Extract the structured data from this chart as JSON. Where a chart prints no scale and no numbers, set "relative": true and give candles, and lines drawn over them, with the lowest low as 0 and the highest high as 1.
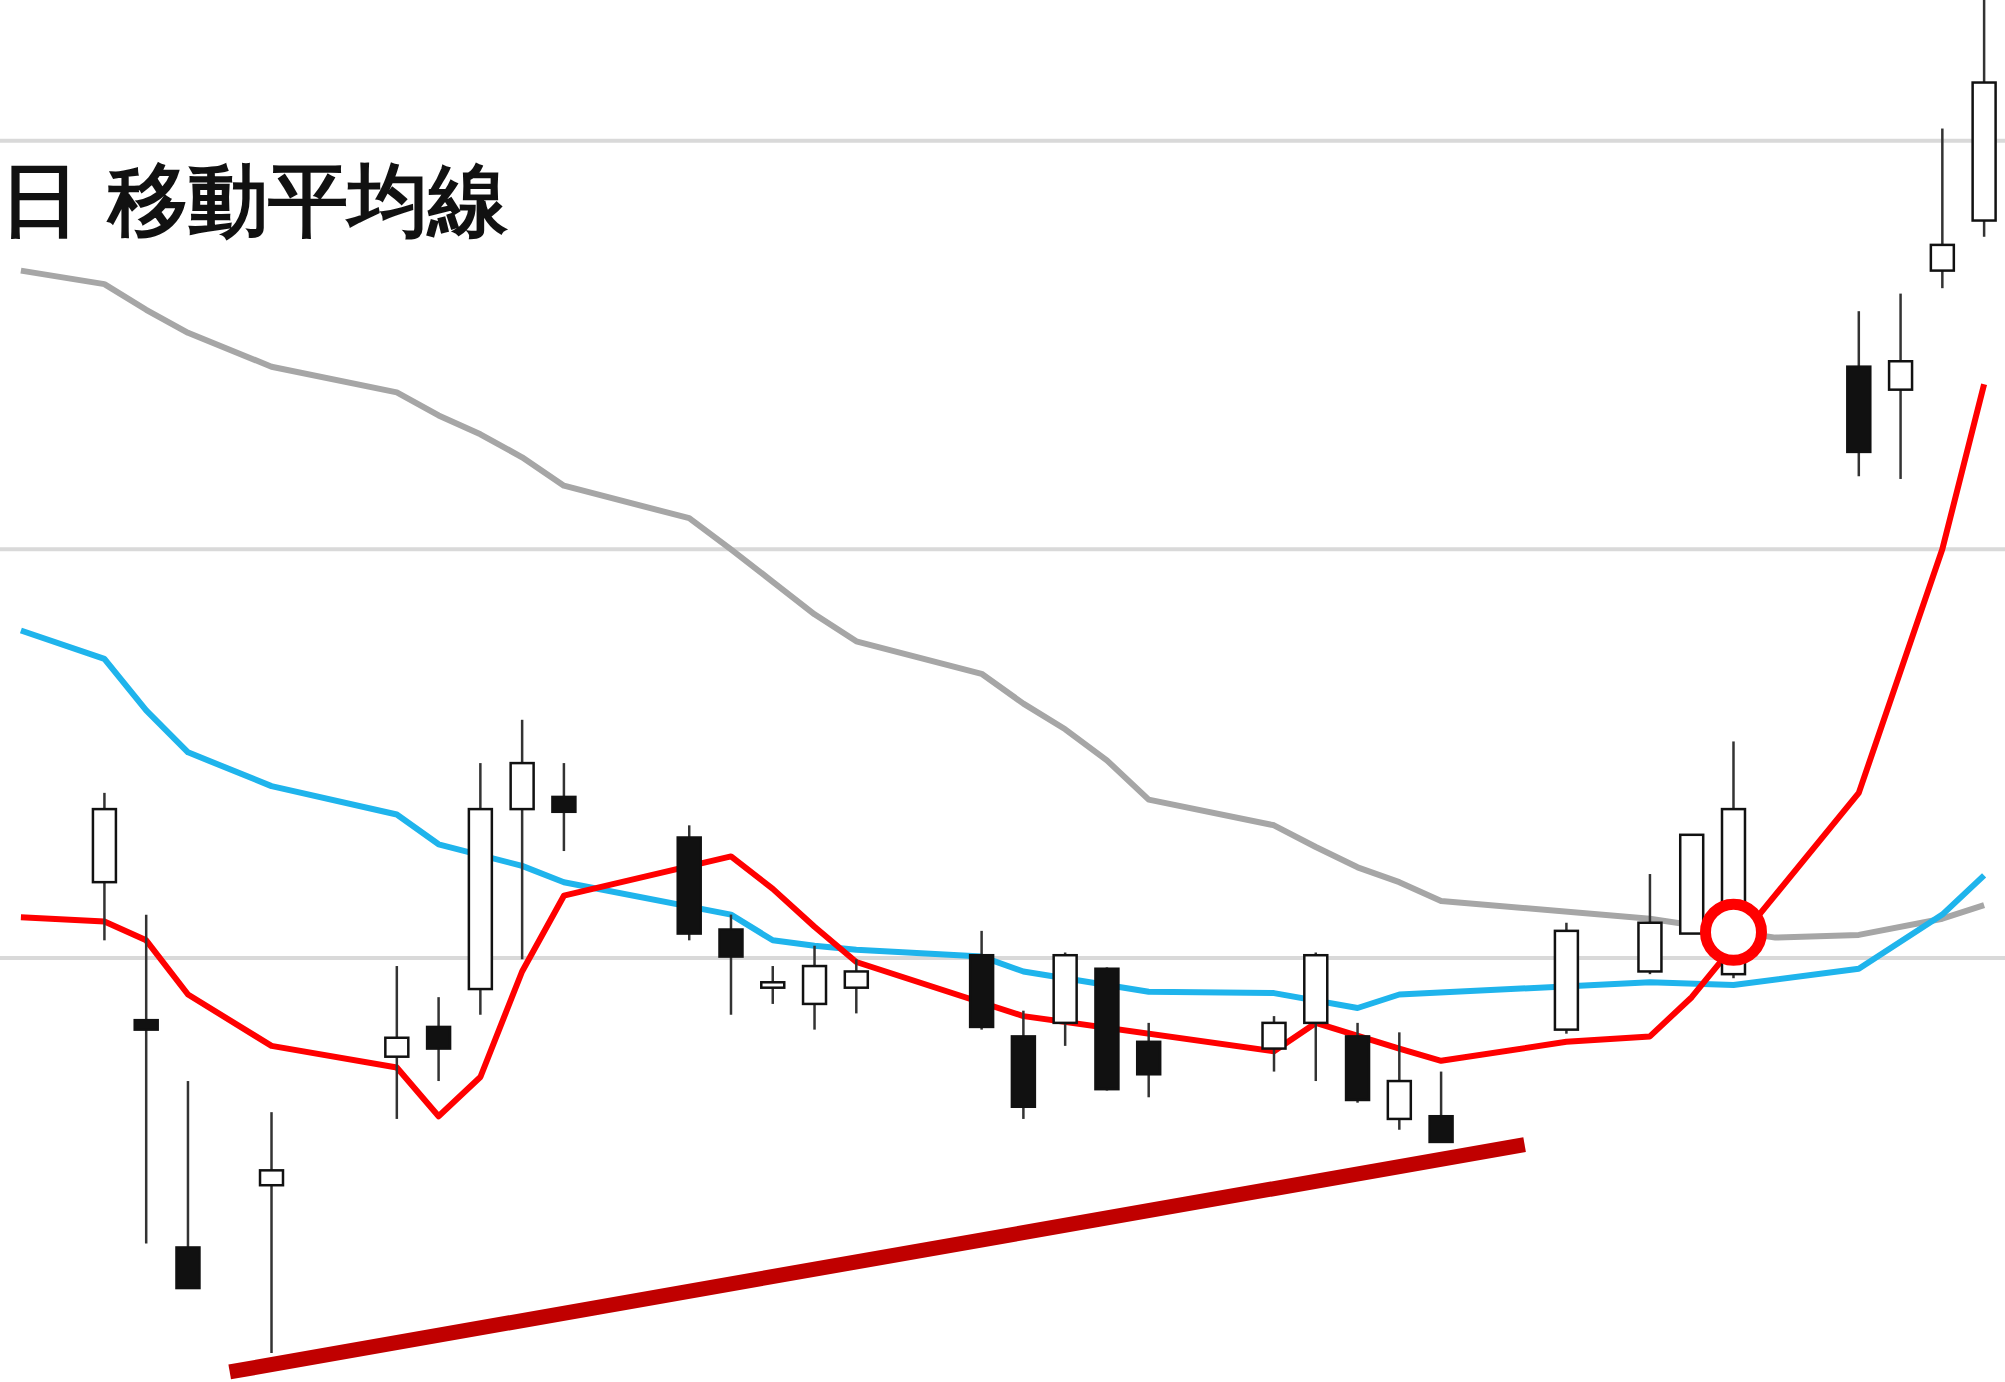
{
  "chart_data": {
    "type": "candlestick",
    "title": "日 移動平均線",
    "relative": true,
    "categories": [
      null,
      null,
      null,
      null,
      null,
      null,
      null,
      null,
      null,
      null,
      null,
      null,
      null,
      null,
      null,
      null,
      null,
      null,
      null,
      null,
      null,
      null,
      null,
      null,
      null,
      null,
      null,
      null,
      null,
      null,
      null,
      null,
      null,
      null,
      null,
      null,
      null,
      null,
      null,
      null,
      null,
      null,
      null,
      null,
      null,
      null,
      null,
      null
    ],
    "ohlc": [
      null,
      null,
      [
        0.348,
        0.414,
        0.305,
        0.402
      ],
      [
        0.246,
        0.324,
        0.081,
        0.239
      ],
      [
        0.078,
        0.201,
        0.048,
        0.048
      ],
      null,
      [
        0.124,
        0.178,
        0,
        0.135
      ],
      null,
      null,
      [
        0.219,
        0.286,
        0.173,
        0.233
      ],
      [
        0.241,
        0.263,
        0.201,
        0.225
      ],
      [
        0.269,
        0.436,
        0.25,
        0.402
      ],
      [
        0.402,
        0.468,
        0.291,
        0.436
      ],
      [
        0.411,
        0.436,
        0.371,
        0.4
      ],
      null,
      null,
      [
        0.381,
        0.39,
        0.305,
        0.31
      ],
      [
        0.313,
        0.324,
        0.25,
        0.293
      ],
      [
        0.27,
        0.286,
        0.258,
        0.274
      ],
      [
        0.258,
        0.301,
        0.239,
        0.286
      ],
      [
        0.27,
        0.291,
        0.251,
        0.282
      ],
      null,
      null,
      [
        0.294,
        0.312,
        0.239,
        0.241
      ],
      [
        0.234,
        0.253,
        0.173,
        0.182
      ],
      [
        0.244,
        0.296,
        0.227,
        0.294
      ],
      [
        0.284,
        0.285,
        0.194,
        0.195
      ],
      [
        0.23,
        0.244,
        0.189,
        0.206
      ],
      null,
      null,
      [
        0.225,
        0.249,
        0.208,
        0.244
      ],
      [
        0.244,
        0.296,
        0.201,
        0.294
      ],
      [
        0.234,
        0.244,
        0.185,
        0.187
      ],
      [
        0.173,
        0.237,
        0.165,
        0.201
      ],
      [
        0.175,
        0.208,
        0.156,
        0.156
      ],
      null,
      null,
      [
        0.239,
        0.318,
        0.236,
        0.312
      ],
      null,
      [
        0.282,
        0.354,
        0.28,
        0.318
      ],
      [
        0.31,
        0.383,
        0.31,
        0.383
      ],
      [
        0.28,
        0.452,
        0.277,
        0.402
      ],
      null,
      null,
      [
        0.729,
        0.77,
        0.648,
        0.666
      ],
      [
        0.712,
        0.783,
        0.646,
        0.733
      ],
      [
        0.8,
        0.905,
        0.787,
        0.819
      ],
      [
        0.837,
        1,
        0.825,
        0.939
      ]
    ],
    "series": [
      {
        "type": "line",
        "color": "#a6a6a6",
        "values": [
          0.8,
          null,
          0.79,
          0.771,
          0.754,
          null,
          0.729,
          null,
          null,
          0.71,
          0.693,
          0.679,
          0.662,
          0.641,
          null,
          null,
          0.617,
          0.594,
          0.57,
          0.546,
          0.526,
          null,
          null,
          0.502,
          0.48,
          0.461,
          0.438,
          0.409,
          null,
          null,
          0.39,
          0.374,
          0.359,
          0.348,
          0.334,
          null,
          null,
          null,
          null,
          0.321,
          null,
          null,
          0.307,
          null,
          0.309,
          null,
          0.321,
          0.331
        ]
      },
      {
        "type": "line",
        "color": "#1fb4ec",
        "values": [
          0.534,
          null,
          0.513,
          0.475,
          0.444,
          null,
          0.419,
          null,
          null,
          0.398,
          0.376,
          null,
          0.36,
          0.348,
          null,
          null,
          null,
          0.324,
          0.305,
          0.301,
          0.298,
          null,
          null,
          0.293,
          0.282,
          null,
          null,
          0.267,
          null,
          null,
          0.266,
          null,
          0.255,
          0.265,
          null,
          null,
          null,
          null,
          null,
          0.274,
          null,
          0.272,
          null,
          null,
          0.284,
          null,
          0.324,
          0.353
        ]
      },
      {
        "type": "line",
        "color": "#ff0000",
        "values": [
          0.322,
          null,
          0.319,
          0.305,
          0.265,
          null,
          0.227,
          null,
          null,
          0.211,
          0.175,
          0.204,
          0.282,
          0.338,
          null,
          null,
          null,
          0.367,
          0.343,
          0.315,
          0.289,
          null,
          null,
          null,
          0.249,
          null,
          null,
          null,
          null,
          null,
          0.223,
          0.244,
          null,
          0.225,
          0.216,
          null,
          null,
          0.23,
          null,
          0.234,
          0.263,
          null,
          null,
          null,
          0.414,
          null,
          0.594,
          0.716
        ]
      },
      {
        "type": "line",
        "color": "#c00000",
        "values": [
          null,
          null,
          null,
          null,
          null,
          -0.014,
          null,
          null,
          null,
          null,
          null,
          null,
          null,
          null,
          null,
          null,
          null,
          null,
          null,
          null,
          null,
          null,
          null,
          null,
          null,
          null,
          null,
          null,
          null,
          null,
          null,
          null,
          null,
          null,
          null,
          null,
          0.154,
          null,
          null,
          null,
          null,
          null,
          null,
          null,
          null,
          null,
          null,
          null
        ]
      },
      {
        "type": "scatter",
        "color": "#ff0000",
        "marker": "circle",
        "values": [
          null,
          null,
          null,
          null,
          null,
          null,
          null,
          null,
          null,
          null,
          null,
          null,
          null,
          null,
          null,
          null,
          null,
          null,
          null,
          null,
          null,
          null,
          null,
          null,
          null,
          null,
          null,
          null,
          null,
          null,
          null,
          null,
          null,
          null,
          null,
          null,
          null,
          null,
          null,
          null,
          null,
          0.311,
          null,
          null,
          null,
          null,
          null,
          null
        ]
      }
    ],
    "ref_lines": [
      {
        "axis": "y",
        "value": 0.896,
        "color": "#d9d9d9"
      },
      {
        "axis": "y",
        "value": 0.594,
        "color": "#d9d9d9"
      },
      {
        "axis": "y",
        "value": 0.292,
        "color": "#d9d9d9"
      }
    ]
  }
}
